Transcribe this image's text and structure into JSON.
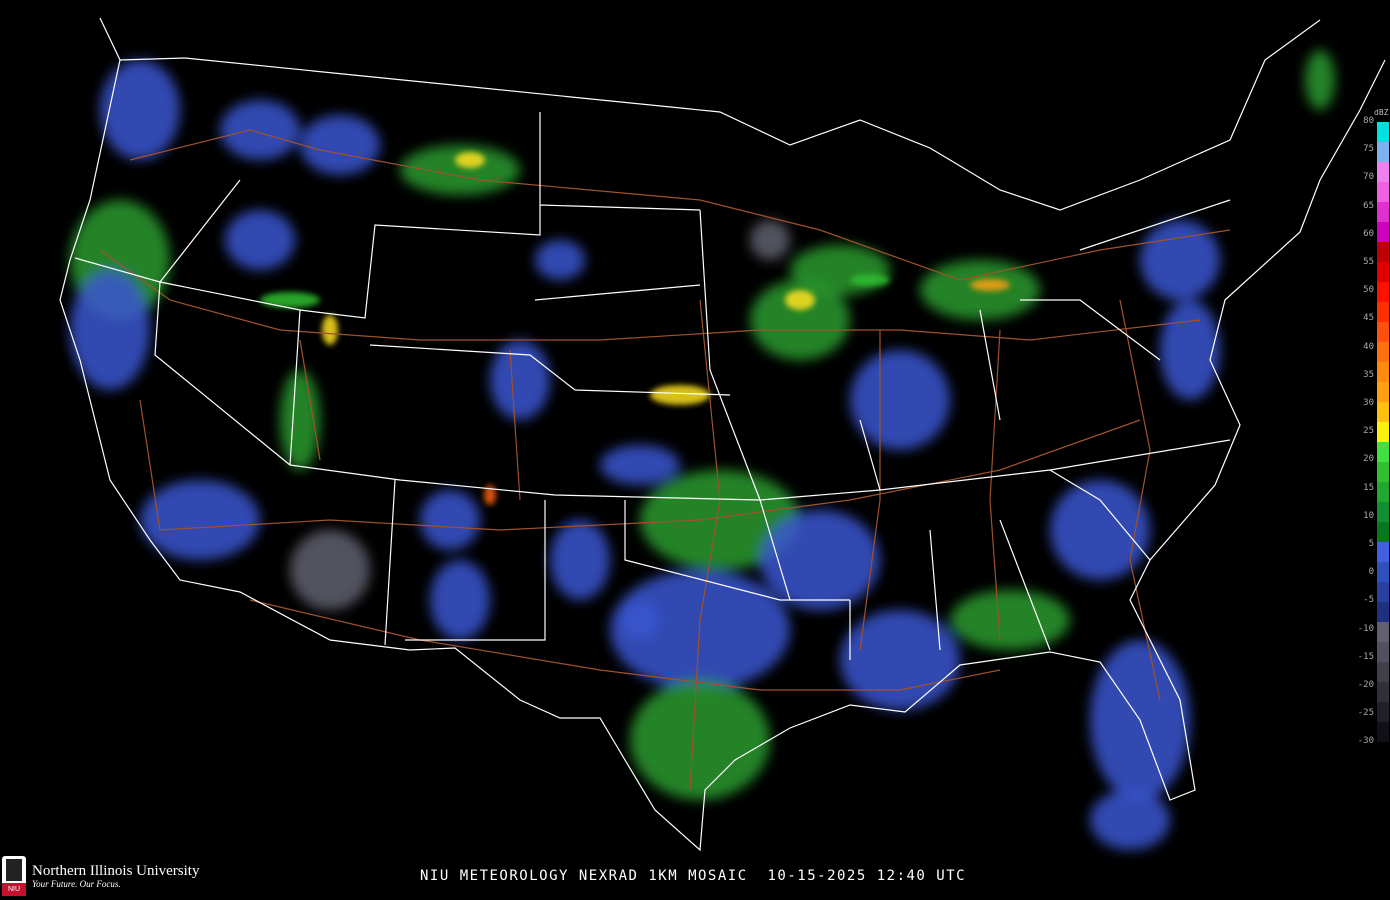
{
  "caption": "NIU METEOROLOGY NEXRAD 1KM MOSAIC  10-15-2025 12:40 UTC",
  "logo": {
    "name": "Northern Illinois University",
    "tagline": "Your Future. Our Focus.",
    "seal_text": "NIU"
  },
  "legend": {
    "unit": "dBZ",
    "ticks": [
      "80",
      "75",
      "70",
      "65",
      "60",
      "55",
      "50",
      "45",
      "40",
      "35",
      "30",
      "25",
      "20",
      "15",
      "10",
      "5",
      "0",
      "-5",
      "-10",
      "-15",
      "-20",
      "-25",
      "-30"
    ],
    "colors": [
      "#00e0e0",
      "#7fb0f0",
      "#f080f0",
      "#f060e0",
      "#e030d0",
      "#d000c0",
      "#c00000",
      "#e00000",
      "#ff1000",
      "#ff3000",
      "#ff5010",
      "#ff7010",
      "#ff8a10",
      "#ffa010",
      "#ffc010",
      "#fff010",
      "#40e040",
      "#30c030",
      "#20a830",
      "#109030",
      "#087820",
      "#4060e0",
      "#3050c0",
      "#2840a0",
      "#203080",
      "#606070",
      "#505060",
      "#404048",
      "#303038",
      "#202028",
      "#101018"
    ]
  },
  "colors": {
    "border": "#ffffff",
    "highway": "#a0522d",
    "background": "#000000"
  }
}
